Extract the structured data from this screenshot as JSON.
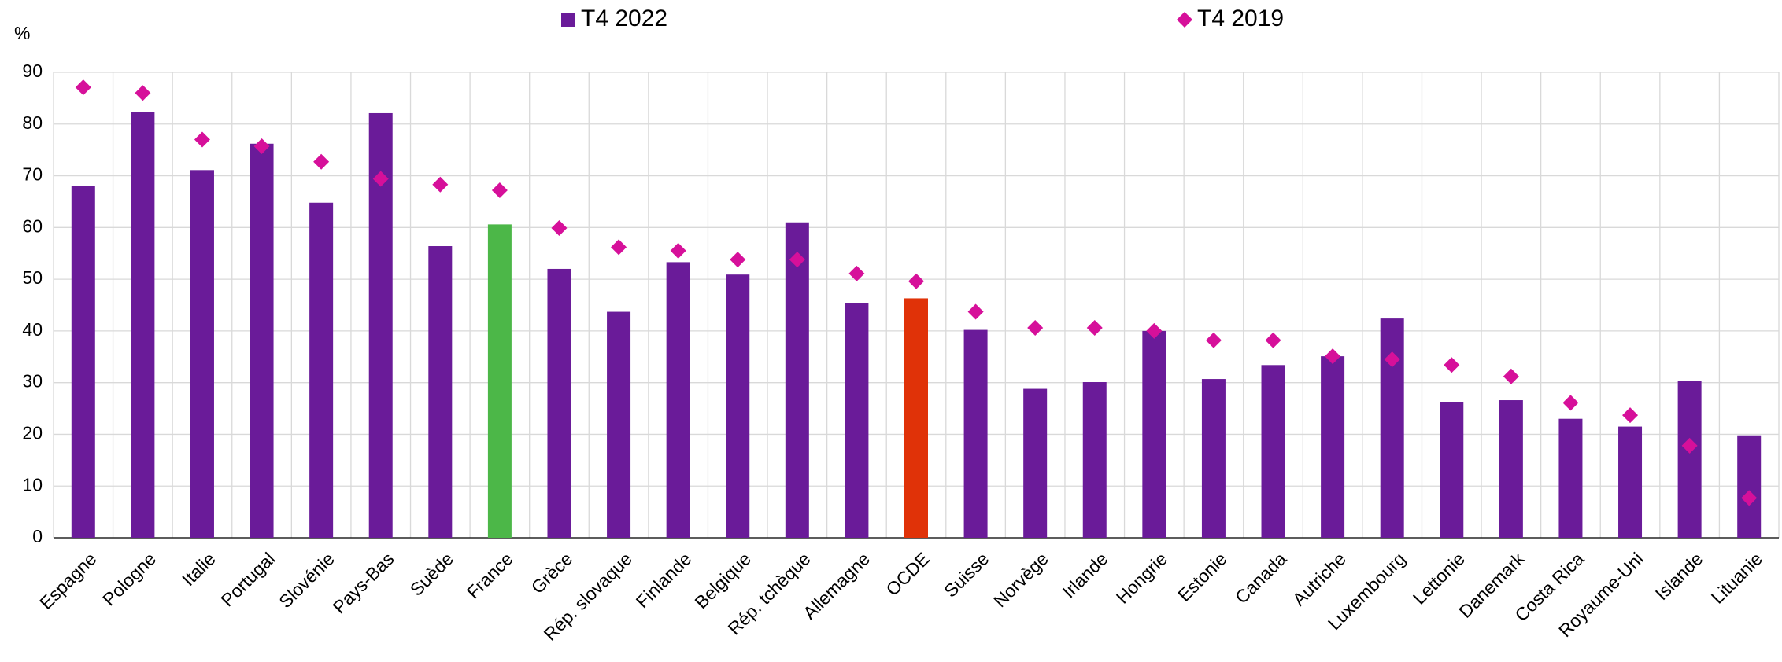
{
  "chart_data": {
    "type": "bar",
    "unit_label": "%",
    "categories": [
      "Espagne",
      "Pologne",
      "Italie",
      "Portugal",
      "Slovénie",
      "Pays-Bas",
      "Suède",
      "France",
      "Grèce",
      "Rép. slovaque",
      "Finlande",
      "Belgique",
      "Rép. tchèque",
      "Allemagne",
      "OCDE",
      "Suisse",
      "Norvège",
      "Irlande",
      "Hongrie",
      "Estonie",
      "Canada",
      "Autriche",
      "Luxembourg",
      "Lettonie",
      "Danemark",
      "Costa Rica",
      "Royaume-Uni",
      "Islande",
      "Lituanie"
    ],
    "series": [
      {
        "name": "T4 2022",
        "color": "#6a1b99",
        "mark": "bar",
        "point_colors": [
          "#6a1b99",
          "#6a1b99",
          "#6a1b99",
          "#6a1b99",
          "#6a1b99",
          "#6a1b99",
          "#6a1b99",
          "#4cb748",
          "#6a1b99",
          "#6a1b99",
          "#6a1b99",
          "#6a1b99",
          "#6a1b99",
          "#6a1b99",
          "#e03208",
          "#6a1b99",
          "#6a1b99",
          "#6a1b99",
          "#6a1b99",
          "#6a1b99",
          "#6a1b99",
          "#6a1b99",
          "#6a1b99",
          "#6a1b99",
          "#6a1b99",
          "#6a1b99",
          "#6a1b99",
          "#6a1b99",
          "#6a1b99"
        ],
        "values": [
          68,
          82.3,
          71.1,
          76.2,
          64.8,
          82.1,
          56.4,
          60.6,
          52,
          43.7,
          53.3,
          50.9,
          61,
          45.4,
          46.3,
          40.2,
          28.8,
          30.1,
          40,
          30.7,
          33.4,
          35.1,
          42.4,
          26.3,
          26.6,
          23,
          21.5,
          30.3,
          19.8
        ]
      },
      {
        "name": "T4 2019",
        "color": "#d6109a",
        "mark": "diamond",
        "values": [
          87.1,
          86,
          77,
          75.7,
          72.7,
          69.4,
          68.3,
          67.2,
          59.9,
          56.2,
          55.5,
          53.8,
          53.8,
          51.1,
          49.6,
          43.7,
          40.6,
          40.6,
          40,
          38.2,
          38.2,
          35.1,
          34.5,
          33.4,
          31.2,
          26.1,
          23.7,
          17.8,
          7.7
        ]
      }
    ],
    "ylim": [
      0,
      90
    ],
    "yticks": [
      0,
      10,
      20,
      30,
      40,
      50,
      60,
      70,
      80,
      90
    ],
    "grid": true,
    "legend": "top"
  }
}
